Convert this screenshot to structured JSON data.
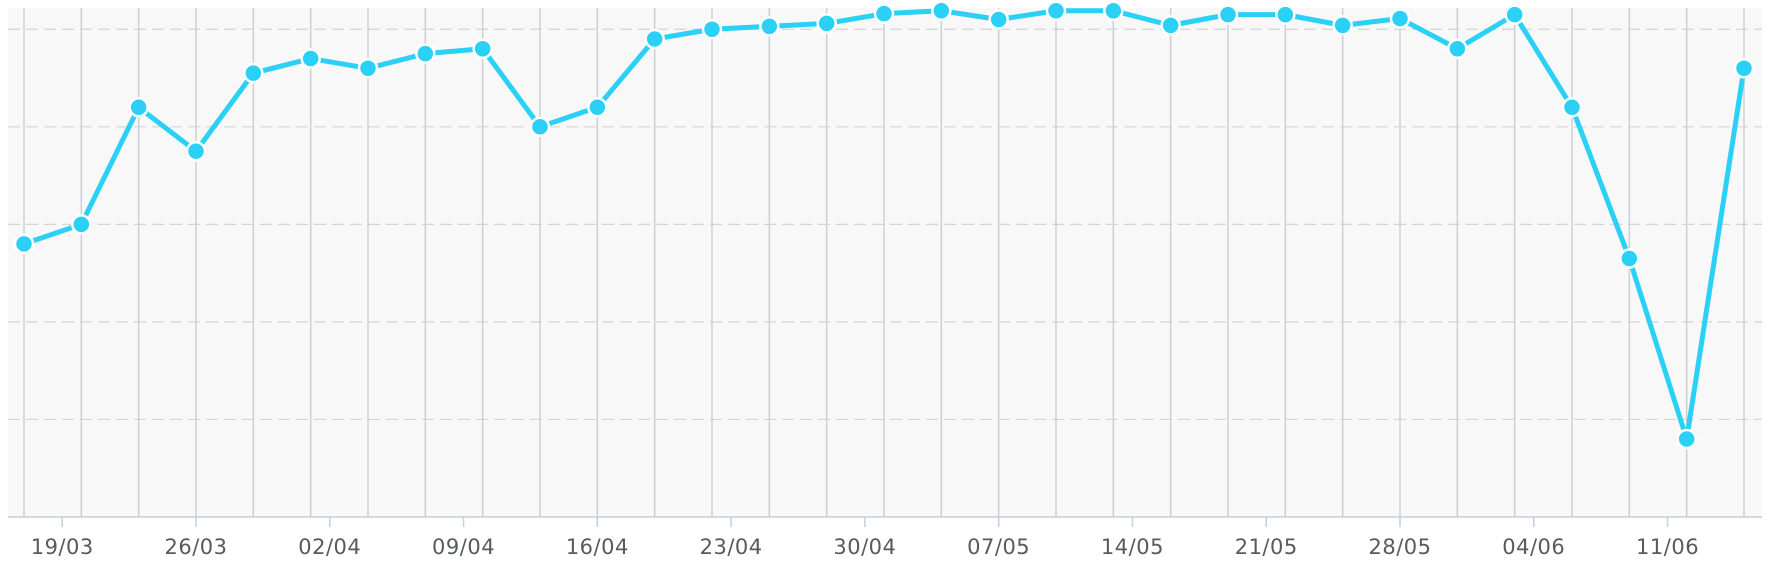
{
  "chart_data": {
    "type": "line",
    "x": [
      "17/03",
      "20/03",
      "23/03",
      "26/03",
      "29/03",
      "01/04",
      "04/04",
      "07/04",
      "10/04",
      "13/04",
      "16/04",
      "19/04",
      "22/04",
      "25/04",
      "28/04",
      "01/05",
      "04/05",
      "07/05",
      "10/05",
      "13/05",
      "16/05",
      "19/05",
      "22/05",
      "25/05",
      "28/05",
      "31/05",
      "03/06",
      "06/06",
      "09/06",
      "12/06",
      "15/06"
    ],
    "values": [
      58,
      60,
      72,
      67.5,
      75.5,
      77,
      76,
      77.5,
      78,
      70,
      72,
      79,
      80,
      80.3,
      80.6,
      81.6,
      81.9,
      81,
      81.9,
      81.9,
      80.4,
      81.5,
      81.5,
      80.4,
      81.1,
      78,
      81.5,
      72,
      56.5,
      38,
      76
    ],
    "x_tick_labels": [
      "19/03",
      "26/03",
      "02/04",
      "09/04",
      "16/04",
      "23/04",
      "30/04",
      "07/05",
      "14/05",
      "21/05",
      "28/05",
      "04/06",
      "11/06"
    ],
    "x_ticks_at": [
      "19/03",
      "26/03",
      "02/04",
      "09/04",
      "16/04",
      "23/04",
      "30/04",
      "07/05",
      "14/05",
      "21/05",
      "28/05",
      "04/06",
      "11/06"
    ],
    "ylim": [
      30,
      83
    ],
    "y_gridlines": [
      80,
      70,
      60,
      50,
      40
    ],
    "x_gridlines": "every data point",
    "y_tick_labels_visible": false,
    "grid": true,
    "legend": "none",
    "colors": {
      "series": "#2ad0f5",
      "plot_background": "#f8f8f8",
      "grid_vertical": "#c9ced4",
      "grid_horizontal": "#d4d4d4",
      "axis": "#c5cfd9",
      "tick_label": "#555b61"
    }
  }
}
